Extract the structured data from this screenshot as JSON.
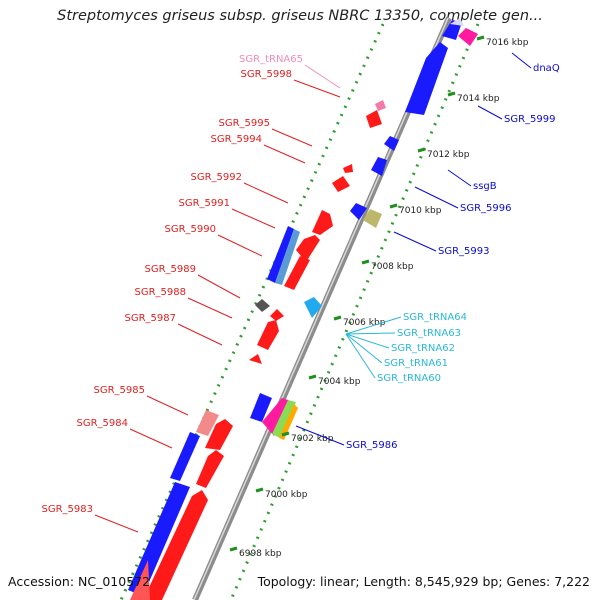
{
  "header": {
    "title": "Streptomyces griseus subsp. griseus NBRC 13350, complete gen..."
  },
  "footer": {
    "accession": "Accession: NC_010572",
    "topology": "Topology: linear; Length: 8,545,929 bp; Genes: 7,222"
  },
  "colors": {
    "forward_gene": "#ff1a1a",
    "reverse_gene": "#1a1aff",
    "left_label": "#e02020",
    "right_label": "#0a0ad0",
    "trna_label": "#2ab8d8",
    "trna_label_pink": "#f28cb4",
    "tick": "#33aa33",
    "axis": "#999999"
  },
  "ruler": {
    "ticks": [
      "7016 kbp",
      "7014 kbp",
      "7012 kbp",
      "7010 kbp",
      "7008 kbp",
      "7006 kbp",
      "7004 kbp",
      "7002 kbp",
      "7000 kbp",
      "6998 kbp"
    ]
  },
  "labels": {
    "left": [
      "SGR_tRNA65",
      "SGR_5998",
      "SGR_5995",
      "SGR_5994",
      "SGR_5992",
      "SGR_5991",
      "SGR_5990",
      "SGR_5989",
      "SGR_5988",
      "SGR_5987",
      "SGR_5985",
      "SGR_5984",
      "SGR_5983"
    ],
    "right": [
      "dnaQ",
      "SGR_5999",
      "ssgB",
      "SGR_5996",
      "SGR_5993",
      "SGR_tRNA64",
      "SGR_tRNA63",
      "SGR_tRNA62",
      "SGR_tRNA61",
      "SGR_tRNA60",
      "SGR_5986"
    ]
  }
}
